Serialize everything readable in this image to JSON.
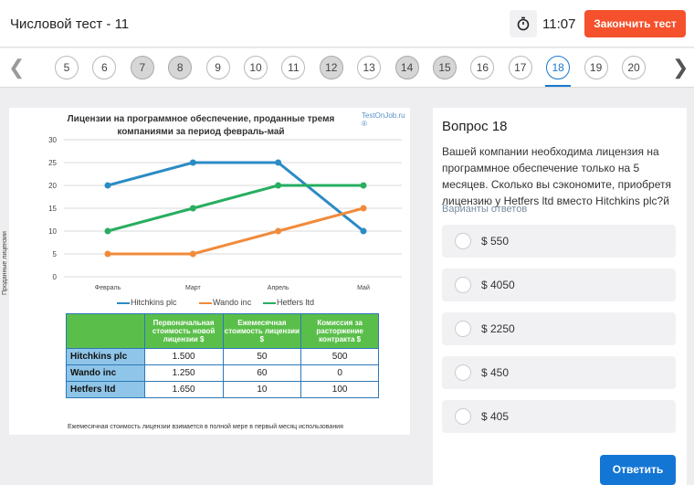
{
  "header": {
    "title": "Числовой тест - 11",
    "timer_icon": "stopwatch-icon",
    "timer": "11:07",
    "finish_label": "Закончить тест",
    "finish_color": "#f4512c"
  },
  "qnav": {
    "numbers": [
      "5",
      "6",
      "7",
      "8",
      "9",
      "10",
      "11",
      "12",
      "13",
      "14",
      "15",
      "16",
      "17",
      "18",
      "19",
      "20"
    ],
    "answered": [
      "7",
      "8",
      "12",
      "14",
      "15"
    ],
    "current": "18",
    "accent": "#1778d2"
  },
  "chart": {
    "title": "Лицензии на программное обеспечение, проданные тремя компаниями за период февраль-май",
    "watermark": "TestOnJob.ru ®",
    "footnote": "Ежемесячная стоимость лицензии взимается в полной мере в первый месяц использования"
  },
  "chart_data": {
    "type": "line",
    "title": "Лицензии на программное обеспечение, проданные тремя компаниями за период февраль-май",
    "xlabel": "",
    "ylabel": "Проданные лицензии",
    "categories": [
      "Февраль",
      "Март",
      "Апрель",
      "Май"
    ],
    "yticks": [
      "0",
      "5",
      "10",
      "15",
      "20",
      "25",
      "30"
    ],
    "ylim": [
      0,
      30
    ],
    "grid": true,
    "legend_position": "bottom",
    "series": [
      {
        "name": "Hitchkins plc",
        "color": "#2b8bc4",
        "values": [
          20,
          25,
          25,
          10
        ]
      },
      {
        "name": "Wando inc",
        "color": "#f08b3b",
        "values": [
          5,
          5,
          10,
          15
        ]
      },
      {
        "name": "Hetfers ltd",
        "color": "#27ae60",
        "values": [
          10,
          15,
          20,
          20
        ]
      }
    ],
    "table": {
      "headers": [
        "",
        "Первоначальная стоимость новой лицензии $",
        "Ежемесячная стоимость лицензии $",
        "Комиссия за расторжение контракта $"
      ],
      "rows": [
        [
          "Hitchkins plc",
          "1.500",
          "50",
          "500"
        ],
        [
          "Wando inc",
          "1.250",
          "60",
          "0"
        ],
        [
          "Hetfers ltd",
          "1.650",
          "10",
          "100"
        ]
      ]
    }
  },
  "question": {
    "title": "Вопрос 18",
    "text": "Вашей компании необходима лицензия на программное обеспечение только на 5 месяцев. Сколько вы сэкономите, приобретя лицензию у Hetfers ltd вместо Hitchkins plc?й",
    "hint": "Варианты ответов",
    "options": [
      "$ 550",
      "$ 4050",
      "$ 2250",
      "$ 450",
      "$ 405"
    ],
    "answer_label": "Ответить",
    "answer_color": "#1476d4"
  }
}
